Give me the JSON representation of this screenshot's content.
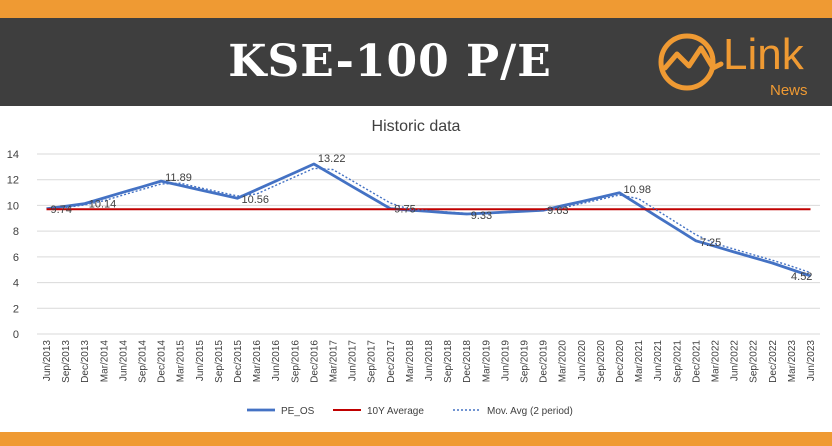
{
  "header": {
    "title": "KSE-100 P/E"
  },
  "logo": {
    "word": "Link",
    "sub": "News",
    "accent": "#ef9a33"
  },
  "chart_data": {
    "type": "line",
    "title": "Historic data",
    "xlabel": "",
    "ylabel": "",
    "ylim": [
      0,
      14
    ],
    "yticks": [
      0,
      2,
      4,
      6,
      8,
      10,
      12,
      14
    ],
    "grid": true,
    "legend_position": "bottom",
    "categories": [
      "Jun/2013",
      "Sep/2013",
      "Dec/2013",
      "Mar/2014",
      "Jun/2014",
      "Sep/2014",
      "Dec/2014",
      "Mar/2015",
      "Jun/2015",
      "Sep/2015",
      "Dec/2015",
      "Mar/2016",
      "Jun/2016",
      "Sep/2016",
      "Dec/2016",
      "Mar/2017",
      "Jun/2017",
      "Sep/2017",
      "Dec/2017",
      "Mar/2018",
      "Jun/2018",
      "Sep/2018",
      "Dec/2018",
      "Mar/2019",
      "Jun/2019",
      "Sep/2019",
      "Dec/2019",
      "Mar/2020",
      "Jun/2020",
      "Sep/2020",
      "Dec/2020",
      "Mar/2021",
      "Jun/2021",
      "Sep/2021",
      "Dec/2021",
      "Mar/2022",
      "Jun/2022",
      "Sep/2022",
      "Dec/2022",
      "Mar/2023",
      "Jun/2023"
    ],
    "series": [
      {
        "name": "PE_OS",
        "color": "#4472c4",
        "style": "solid",
        "values": [
          9.74,
          9.94,
          10.14,
          10.58,
          11.02,
          11.45,
          11.89,
          11.56,
          11.22,
          10.89,
          10.56,
          11.22,
          11.89,
          12.55,
          13.22,
          12.35,
          11.48,
          10.62,
          9.75,
          9.64,
          9.54,
          9.43,
          9.33,
          9.4,
          9.48,
          9.55,
          9.63,
          9.97,
          10.3,
          10.64,
          10.98,
          10.05,
          9.11,
          8.18,
          7.25,
          6.82,
          6.38,
          5.95,
          5.52,
          5.02,
          4.52
        ]
      },
      {
        "name": "10Y Average",
        "color": "#c00000",
        "style": "solid",
        "values": [
          9.7,
          9.7,
          9.7,
          9.7,
          9.7,
          9.7,
          9.7,
          9.7,
          9.7,
          9.7,
          9.7,
          9.7,
          9.7,
          9.7,
          9.7,
          9.7,
          9.7,
          9.7,
          9.7,
          9.7,
          9.7,
          9.7,
          9.7,
          9.7,
          9.7,
          9.7,
          9.7,
          9.7,
          9.7,
          9.7,
          9.7,
          9.7,
          9.7,
          9.7,
          9.7,
          9.7,
          9.7,
          9.7,
          9.7,
          9.7,
          9.7
        ]
      },
      {
        "name": "Mov. Avg (2 period)",
        "color": "#4472c4",
        "style": "dotted",
        "values": [
          null,
          9.84,
          10.04,
          10.36,
          10.8,
          11.24,
          11.67,
          11.73,
          11.39,
          11.06,
          10.73,
          10.89,
          11.56,
          12.22,
          12.89,
          12.79,
          11.92,
          11.05,
          10.19,
          9.7,
          9.59,
          9.49,
          9.38,
          9.37,
          9.44,
          9.52,
          9.59,
          9.8,
          10.14,
          10.47,
          10.81,
          10.52,
          9.58,
          8.65,
          7.72,
          7.04,
          6.6,
          6.17,
          5.74,
          5.27,
          4.77
        ]
      }
    ],
    "data_labels": [
      {
        "index": 0,
        "text": "9.74"
      },
      {
        "index": 2,
        "text": "10.14"
      },
      {
        "index": 6,
        "text": "11.89"
      },
      {
        "index": 10,
        "text": "10.56"
      },
      {
        "index": 14,
        "text": "13.22"
      },
      {
        "index": 18,
        "text": "9.75"
      },
      {
        "index": 22,
        "text": "9.33"
      },
      {
        "index": 26,
        "text": "9.63"
      },
      {
        "index": 30,
        "text": "10.98"
      },
      {
        "index": 34,
        "text": "7.25"
      },
      {
        "index": 40,
        "text": "4.52"
      }
    ]
  }
}
